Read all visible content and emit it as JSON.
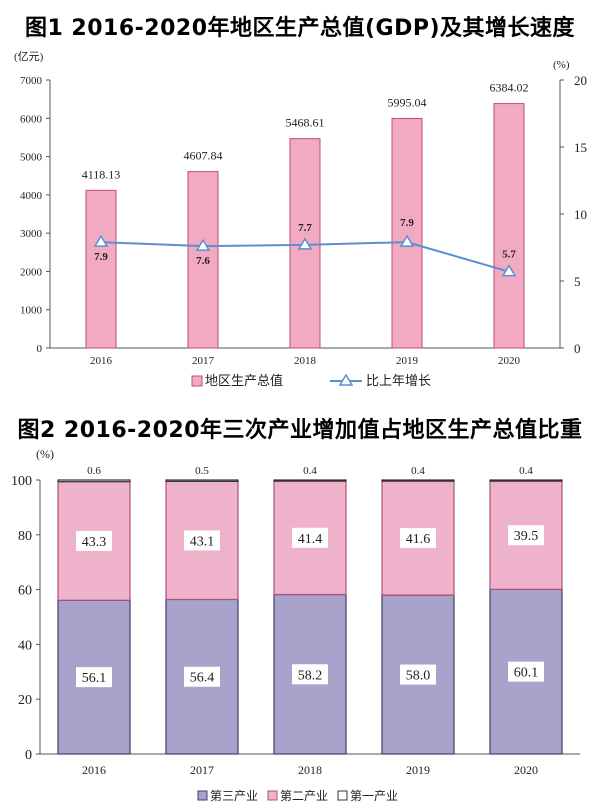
{
  "chart_data": [
    {
      "type": "bar",
      "title": "图1 2016-2020年地区生产总值(GDP)及其增长速度",
      "categories": [
        "2016",
        "2017",
        "2018",
        "2019",
        "2020"
      ],
      "y_left_unit": "(亿元)",
      "y_left_ticks": [
        "0",
        "1000",
        "2000",
        "3000",
        "4000",
        "5000",
        "6000",
        "7000"
      ],
      "ylim_left": [
        0,
        7000
      ],
      "y_right_unit": "(%)",
      "y_right_ticks": [
        "0",
        "5",
        "10",
        "15",
        "20"
      ],
      "ylim_right": [
        0,
        20
      ],
      "series": [
        {
          "name": "地区生产总值",
          "type": "bar",
          "values": [
            4118.13,
            4607.84,
            5468.61,
            5995.04,
            6384.02
          ],
          "labels": [
            "4118.13",
            "4607.84",
            "5468.61",
            "5995.04",
            "6384.02"
          ],
          "color": "#f2a9c2"
        },
        {
          "name": "比上年增长",
          "type": "line",
          "axis": "right",
          "values": [
            7.9,
            7.6,
            7.7,
            7.9,
            5.7
          ],
          "labels": [
            "7.9",
            "7.6",
            "7.7",
            "7.9",
            "5.7"
          ],
          "color": "#5b8fd0"
        }
      ],
      "legend": "bottom"
    },
    {
      "type": "bar",
      "stacked": true,
      "title": "图2 2016-2020年三次产业增加值占地区生产总值比重",
      "categories": [
        "2016",
        "2017",
        "2018",
        "2019",
        "2020"
      ],
      "y_unit": "(%)",
      "y_ticks": [
        "0",
        "20",
        "40",
        "60",
        "80",
        "100"
      ],
      "ylim": [
        0,
        100
      ],
      "series": [
        {
          "name": "第三产业",
          "values": [
            56.1,
            56.4,
            58.2,
            58.0,
            60.1
          ],
          "labels": [
            "56.1",
            "56.4",
            "58.2",
            "58.0",
            "60.1"
          ],
          "color": "#a9a3cc"
        },
        {
          "name": "第二产业",
          "values": [
            43.3,
            43.1,
            41.4,
            41.6,
            39.5
          ],
          "labels": [
            "43.3",
            "43.1",
            "41.4",
            "41.6",
            "39.5"
          ],
          "color": "#eeb3cb"
        },
        {
          "name": "第一产业",
          "values": [
            0.6,
            0.5,
            0.4,
            0.4,
            0.4
          ],
          "labels": [
            "0.6",
            "0.5",
            "0.4",
            "0.4",
            "0.4"
          ],
          "color": "#ffffff"
        }
      ],
      "legend": "bottom"
    }
  ]
}
